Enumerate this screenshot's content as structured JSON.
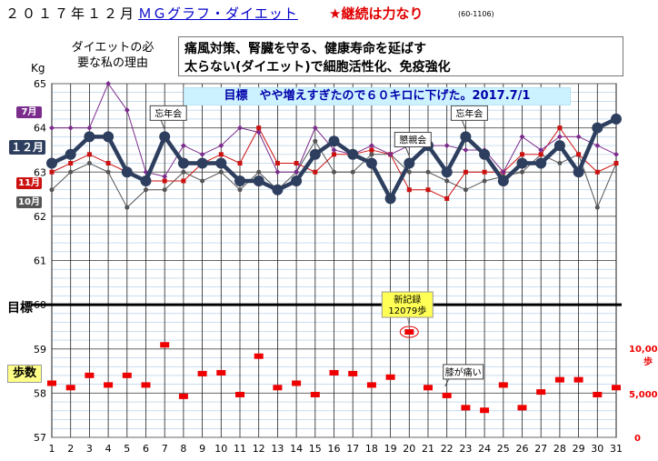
{
  "header": {
    "title": "２０１７年１２月",
    "link": "ＭＧグラフ・ダイエット",
    "motto": "★継続は力なり",
    "code": "(60-1106)"
  },
  "reason": {
    "label_line1": "ダイエットの必",
    "label_line2": "要な私の理由",
    "line1": "痛風対策、腎臓を守る、健康寿命を延ばす",
    "line2": "太らない(ダイエット)で細胞活性化、免疫強化"
  },
  "goal_banner": "目標　やや増えすぎたので６０キロに下げた。2017.7/1",
  "labels": {
    "kg_unit": "Kg",
    "goal": "目標",
    "steps": "歩数",
    "month12": "１２月",
    "month7": "7月",
    "month11": "11月",
    "month10": "10月"
  },
  "colors": {
    "m12": "#2d3e5e",
    "m7": "#7b2d8c",
    "m11": "#cc1111",
    "m10": "#555555",
    "steps": "#ee0000",
    "goal_line": "#000000",
    "banner": "#ccf2ff"
  },
  "chart_data": {
    "type": "line",
    "x": [
      1,
      2,
      3,
      4,
      5,
      6,
      7,
      8,
      9,
      10,
      11,
      12,
      13,
      14,
      15,
      16,
      17,
      18,
      19,
      20,
      21,
      22,
      23,
      24,
      25,
      26,
      27,
      28,
      29,
      30,
      31
    ],
    "x_tick_labels": [
      "1",
      "2",
      "3",
      "4",
      "5",
      "6",
      "7",
      "8",
      "9",
      "10",
      "11",
      "12",
      "13",
      "14",
      "15",
      "16",
      "17",
      "18",
      "19",
      "20",
      "21",
      "22",
      "23",
      "24",
      "25",
      "26",
      "27",
      "28",
      "29",
      "30",
      "31"
    ],
    "ylim": [
      57,
      65
    ],
    "y_tick_labels": [
      "57",
      "58",
      "59",
      "60",
      "61",
      "62",
      "63",
      "64",
      "65"
    ],
    "goal_value": 60,
    "series": [
      {
        "name": "１２月",
        "values": [
          63.2,
          63.4,
          63.8,
          63.8,
          63.0,
          62.8,
          63.8,
          63.2,
          63.2,
          63.2,
          62.8,
          62.8,
          62.6,
          62.8,
          63.4,
          63.7,
          63.4,
          63.2,
          62.4,
          63.2,
          63.6,
          63.0,
          63.8,
          63.4,
          62.8,
          63.2,
          63.2,
          63.6,
          63.0,
          64.0,
          64.2
        ]
      },
      {
        "name": "7月",
        "values": [
          64.0,
          64.0,
          64.0,
          65.0,
          64.4,
          63.0,
          62.9,
          63.6,
          63.4,
          63.6,
          64.0,
          63.9,
          63.0,
          63.0,
          64.0,
          63.5,
          63.4,
          63.6,
          63.4,
          63.6,
          63.6,
          63.6,
          63.5,
          63.5,
          63.0,
          63.8,
          63.5,
          63.8,
          63.8,
          63.6,
          63.4
        ]
      },
      {
        "name": "11月",
        "values": [
          63.0,
          63.2,
          63.4,
          63.2,
          63.0,
          62.8,
          62.8,
          62.8,
          63.2,
          63.4,
          63.2,
          64.0,
          63.2,
          63.2,
          63.0,
          63.4,
          63.4,
          63.5,
          63.4,
          62.6,
          62.6,
          62.4,
          63.0,
          63.0,
          63.0,
          63.4,
          63.4,
          64.0,
          63.4,
          63.0,
          63.2
        ]
      },
      {
        "name": "10月",
        "values": [
          62.6,
          63.0,
          63.2,
          63.0,
          62.2,
          62.6,
          62.6,
          63.0,
          62.8,
          63.0,
          62.6,
          63.0,
          62.6,
          63.0,
          63.7,
          63.0,
          63.0,
          63.4,
          63.4,
          63.0,
          63.0,
          62.8,
          62.6,
          62.8,
          62.9,
          63.0,
          63.4,
          63.2,
          63.4,
          62.2,
          63.2
        ]
      }
    ],
    "steps": {
      "name": "歩数",
      "axis_labels": [
        "10,000",
        "歩",
        "5,000",
        "0"
      ],
      "values": [
        6200,
        5700,
        7100,
        6000,
        7100,
        6000,
        10600,
        4700,
        7300,
        7400,
        4900,
        9300,
        5700,
        6200,
        4900,
        7400,
        7300,
        6000,
        6900,
        12079,
        5700,
        4800,
        3400,
        3100,
        6000,
        3400,
        5200,
        6600,
        6600,
        4900,
        5700
      ]
    },
    "annotations": [
      {
        "text": "忘年会",
        "day": 7,
        "value": 63.8
      },
      {
        "text": "懇親会",
        "day": 20,
        "value": 63.2
      },
      {
        "text": "忘年会",
        "day": 23,
        "value": 63.8
      },
      {
        "text": "新記録",
        "text2": "12079歩",
        "day": 20,
        "steps": 12079
      },
      {
        "text": "膝が痛い",
        "day": 22,
        "steps": 4800
      }
    ]
  }
}
